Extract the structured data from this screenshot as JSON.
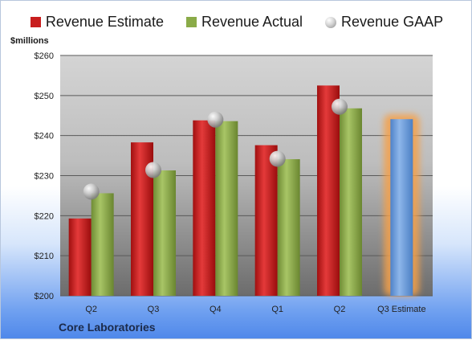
{
  "legend": {
    "estimate": "Revenue Estimate",
    "actual": "Revenue Actual",
    "gaap": "Revenue GAAP"
  },
  "unit_label": "$millions",
  "company": "Core Laboratories",
  "colors": {
    "estimate": "#c81e1e",
    "actual": "#8aab48",
    "gaap": "#b8b8b8",
    "projected": "#6f9fdb",
    "highlight": "#f5a04a"
  },
  "chart_data": {
    "type": "bar",
    "categories": [
      "Q2",
      "Q3",
      "Q4",
      "Q1",
      "Q2",
      "Q3 Estimate"
    ],
    "series": [
      {
        "name": "Revenue Estimate",
        "values": [
          219.3,
          238.3,
          243.8,
          237.6,
          252.5,
          null
        ]
      },
      {
        "name": "Revenue Actual",
        "values": [
          225.6,
          231.3,
          243.6,
          234.1,
          246.8,
          244.1
        ]
      },
      {
        "name": "Revenue GAAP",
        "values": [
          226.0,
          231.4,
          244.0,
          234.2,
          247.2,
          null
        ]
      }
    ],
    "ylim": [
      200,
      260
    ],
    "yticks": [
      "$200",
      "$210",
      "$220",
      "$230",
      "$240",
      "$250",
      "$260"
    ],
    "ylabel": "$millions",
    "grid": true,
    "legend_position": "top"
  }
}
